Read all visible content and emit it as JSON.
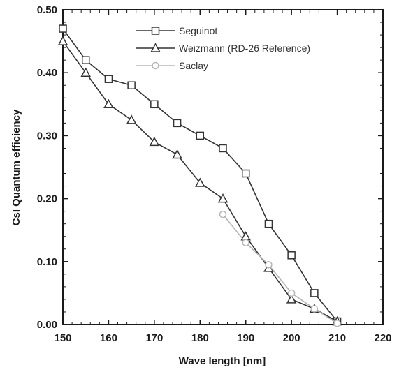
{
  "chart_data": {
    "type": "line",
    "title": "",
    "xlabel": "Wave length [nm]",
    "ylabel": "CsI Quantum efficiency",
    "xlim": [
      150,
      220
    ],
    "ylim": [
      0,
      0.5
    ],
    "x_ticks": [
      150,
      160,
      170,
      180,
      190,
      200,
      210,
      220
    ],
    "x_tick_labels": [
      "150",
      "160",
      "170",
      "180",
      "190",
      "200",
      "210",
      "220"
    ],
    "y_ticks": [
      0,
      0.1,
      0.2,
      0.3,
      0.4,
      0.5
    ],
    "y_tick_labels": [
      "0.00",
      "0.10",
      "0.20",
      "0.30",
      "0.40",
      "0.50"
    ],
    "grid": false,
    "legend_position": "top-right",
    "series": [
      {
        "name": "Seguinot",
        "marker": "square",
        "color": "#333333",
        "x": [
          150,
          155,
          160,
          165,
          170,
          175,
          180,
          185,
          190,
          195,
          200,
          205,
          210
        ],
        "y": [
          0.47,
          0.42,
          0.39,
          0.38,
          0.35,
          0.32,
          0.3,
          0.28,
          0.24,
          0.16,
          0.11,
          0.05,
          0.005
        ]
      },
      {
        "name": "Weizmann (RD-26 Reference)",
        "marker": "triangle",
        "color": "#333333",
        "x": [
          150,
          155,
          160,
          165,
          170,
          175,
          180,
          185,
          190,
          195,
          200,
          205,
          210
        ],
        "y": [
          0.45,
          0.4,
          0.35,
          0.325,
          0.29,
          0.27,
          0.225,
          0.2,
          0.14,
          0.09,
          0.04,
          0.025,
          0.005
        ]
      },
      {
        "name": "Saclay",
        "marker": "circle",
        "color": "#b5b5b5",
        "x": [
          185,
          190,
          195,
          200,
          205,
          210
        ],
        "y": [
          0.175,
          0.13,
          0.095,
          0.05,
          0.025,
          0.002
        ]
      }
    ]
  }
}
